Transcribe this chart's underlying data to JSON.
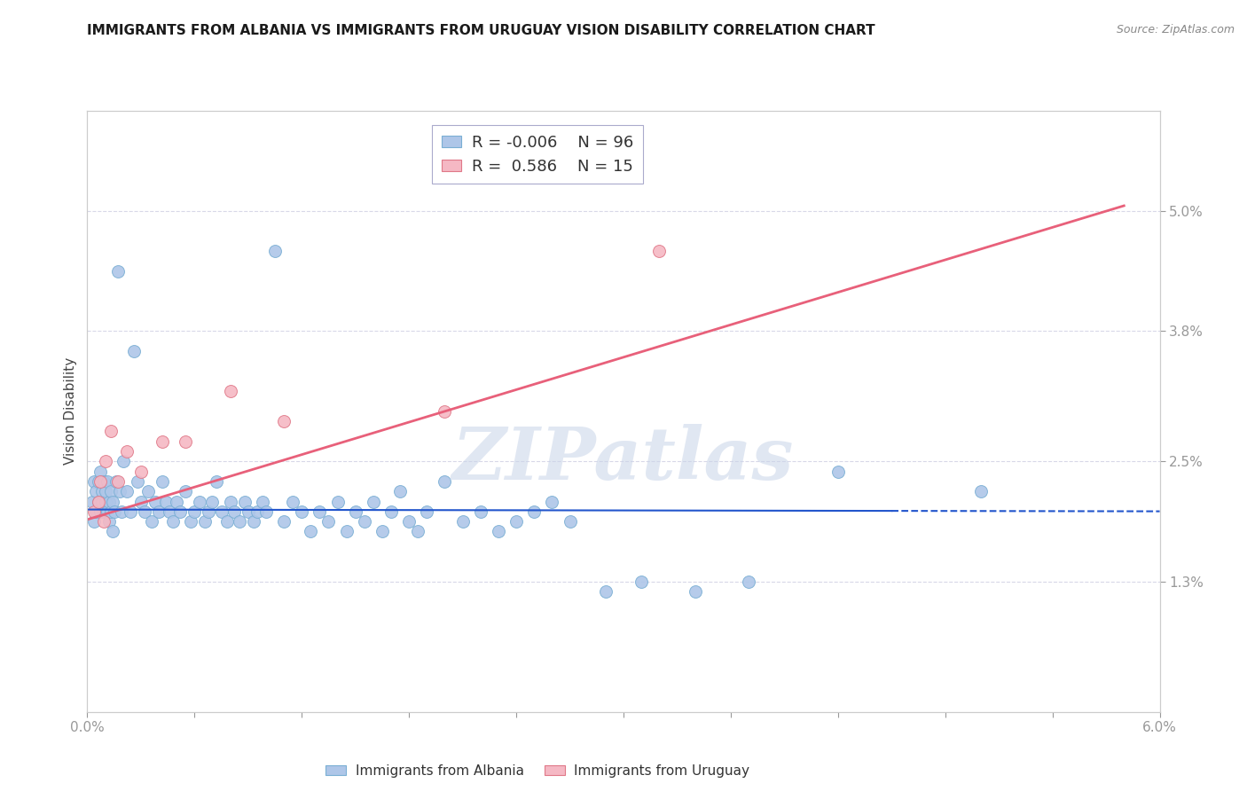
{
  "title": "IMMIGRANTS FROM ALBANIA VS IMMIGRANTS FROM URUGUAY VISION DISABILITY CORRELATION CHART",
  "source": "Source: ZipAtlas.com",
  "ylabel": "Vision Disability",
  "xlim": [
    0.0,
    6.0
  ],
  "ylim": [
    0.0,
    6.0
  ],
  "ytick_positions": [
    1.3,
    2.5,
    3.8,
    5.0
  ],
  "ytick_labels": [
    "1.3%",
    "2.5%",
    "3.8%",
    "5.0%"
  ],
  "albania_color": "#aec6e8",
  "albania_edge": "#7aafd4",
  "uruguay_color": "#f5b8c4",
  "uruguay_edge": "#e07888",
  "trend_albania_solid_color": "#2255cc",
  "trend_albania_dash_color": "#2255cc",
  "trend_uruguay_color": "#e8607a",
  "r_albania": -0.006,
  "n_albania": 96,
  "r_uruguay": 0.586,
  "n_uruguay": 15,
  "albania_scatter_x": [
    0.03,
    0.04,
    0.04,
    0.05,
    0.05,
    0.06,
    0.06,
    0.07,
    0.07,
    0.08,
    0.08,
    0.09,
    0.09,
    0.1,
    0.1,
    0.11,
    0.11,
    0.12,
    0.12,
    0.13,
    0.13,
    0.14,
    0.14,
    0.15,
    0.16,
    0.17,
    0.18,
    0.19,
    0.2,
    0.22,
    0.24,
    0.26,
    0.28,
    0.3,
    0.32,
    0.34,
    0.36,
    0.38,
    0.4,
    0.42,
    0.44,
    0.46,
    0.48,
    0.5,
    0.52,
    0.55,
    0.58,
    0.6,
    0.63,
    0.66,
    0.68,
    0.7,
    0.72,
    0.75,
    0.78,
    0.8,
    0.82,
    0.85,
    0.88,
    0.9,
    0.93,
    0.95,
    0.98,
    1.0,
    1.05,
    1.1,
    1.15,
    1.2,
    1.25,
    1.3,
    1.35,
    1.4,
    1.45,
    1.5,
    1.55,
    1.6,
    1.65,
    1.7,
    1.75,
    1.8,
    1.85,
    1.9,
    2.0,
    2.1,
    2.2,
    2.3,
    2.4,
    2.5,
    2.6,
    2.7,
    2.9,
    3.1,
    3.4,
    3.7,
    4.2,
    5.0
  ],
  "albania_scatter_y": [
    2.1,
    2.3,
    1.9,
    2.0,
    2.2,
    2.1,
    2.3,
    2.0,
    2.4,
    2.1,
    2.2,
    2.0,
    2.3,
    2.1,
    2.2,
    2.0,
    2.3,
    2.1,
    1.9,
    2.0,
    2.2,
    1.8,
    2.1,
    2.0,
    2.3,
    4.4,
    2.2,
    2.0,
    2.5,
    2.2,
    2.0,
    3.6,
    2.3,
    2.1,
    2.0,
    2.2,
    1.9,
    2.1,
    2.0,
    2.3,
    2.1,
    2.0,
    1.9,
    2.1,
    2.0,
    2.2,
    1.9,
    2.0,
    2.1,
    1.9,
    2.0,
    2.1,
    2.3,
    2.0,
    1.9,
    2.1,
    2.0,
    1.9,
    2.1,
    2.0,
    1.9,
    2.0,
    2.1,
    2.0,
    4.6,
    1.9,
    2.1,
    2.0,
    1.8,
    2.0,
    1.9,
    2.1,
    1.8,
    2.0,
    1.9,
    2.1,
    1.8,
    2.0,
    2.2,
    1.9,
    1.8,
    2.0,
    2.3,
    1.9,
    2.0,
    1.8,
    1.9,
    2.0,
    2.1,
    1.9,
    1.2,
    1.3,
    1.2,
    1.3,
    2.4,
    2.2
  ],
  "uruguay_scatter_x": [
    0.04,
    0.06,
    0.07,
    0.09,
    0.1,
    0.13,
    0.17,
    0.22,
    0.3,
    0.42,
    0.55,
    0.8,
    1.1,
    2.0,
    3.2
  ],
  "uruguay_scatter_y": [
    2.0,
    2.1,
    2.3,
    1.9,
    2.5,
    2.8,
    2.3,
    2.6,
    2.4,
    2.7,
    2.7,
    3.2,
    2.9,
    3.0,
    4.6
  ],
  "watermark": "ZIPatlas",
  "background_color": "#ffffff",
  "grid_color": "#d8d8e8",
  "albania_trend_intercept": 2.02,
  "albania_trend_slope": -0.003,
  "uruguay_trend_intercept": 1.92,
  "uruguay_trend_slope": 0.54
}
